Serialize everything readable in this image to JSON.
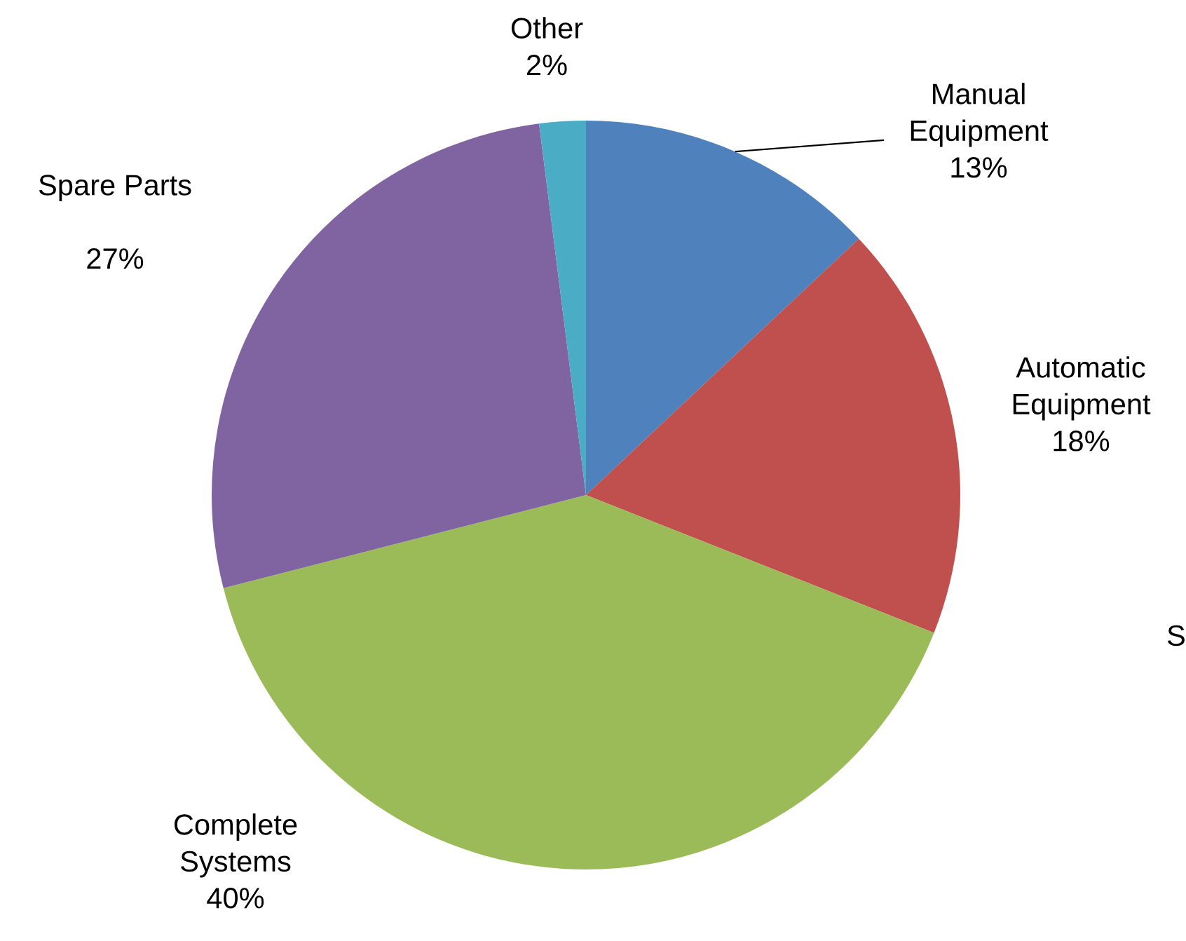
{
  "chart_data": {
    "type": "pie",
    "categories": [
      "Manual Equipment",
      "Automatic Equipment",
      "Complete Systems",
      "Spare Parts",
      "Other"
    ],
    "values": [
      13,
      18,
      40,
      27,
      2
    ],
    "value_labels": [
      "13%",
      "18%",
      "40%",
      "27%",
      "2%"
    ],
    "colors": [
      "#4f81bd",
      "#c0504d",
      "#9bbb59",
      "#8064a2",
      "#4bacc6"
    ],
    "annotations": [
      "S"
    ]
  }
}
